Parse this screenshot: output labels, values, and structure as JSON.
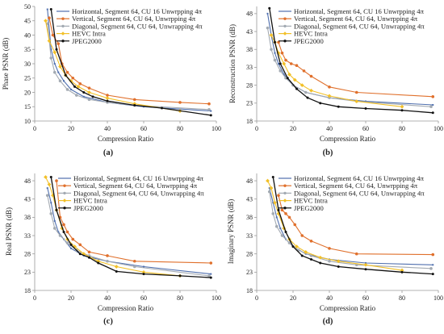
{
  "legend": [
    {
      "label": "Horizontal, Segment 64, CU 16 Unwrpping 4π",
      "color": "#4f6fae",
      "marker": "none"
    },
    {
      "label": "Vertical, Segment 64, CU 64, Unwrpping 4π",
      "color": "#e0702c",
      "marker": "circle"
    },
    {
      "label": "Diagonal, Segment 64, CU 64, Unwrapping 4π",
      "color": "#a3aab2",
      "marker": "circle"
    },
    {
      "label": "HEVC Intra",
      "color": "#f2c028",
      "marker": "diamond"
    },
    {
      "label": "JPEG2000",
      "color": "#111111",
      "marker": "circle"
    }
  ],
  "chart_data": [
    {
      "type": "line",
      "panel": "(a)",
      "xlabel": "Compression Ratio",
      "ylabel": "Phase PSNR (dB)",
      "xlim": [
        0,
        100
      ],
      "ylim": [
        10,
        50
      ],
      "xticks": [
        0,
        20,
        40,
        60,
        80,
        100
      ],
      "yticks": [
        10,
        15,
        20,
        25,
        30,
        35,
        40,
        45,
        50
      ],
      "series": [
        {
          "name": "Horizontal, Segment 64, CU 16 Unwrpping 4π",
          "x": [
            7,
            9,
            11,
            13,
            16,
            20,
            27,
            40,
            60,
            97
          ],
          "y": [
            49,
            35,
            30,
            27,
            24,
            21,
            18.5,
            16.5,
            15,
            13.5
          ]
        },
        {
          "name": "Vertical, Segment 64, CU 64, Unwrpping 4π",
          "x": [
            8,
            10,
            13,
            15,
            18,
            21,
            25,
            30,
            40,
            55,
            80,
            96
          ],
          "y": [
            46,
            40,
            37,
            30,
            27,
            25,
            23,
            21.5,
            19,
            17.5,
            16.5,
            16
          ]
        },
        {
          "name": "Diagonal, Segment 64, CU 64, Unwrapping 4π",
          "x": [
            7,
            9,
            11,
            14,
            18,
            23,
            30,
            40,
            55,
            96
          ],
          "y": [
            44,
            32,
            27,
            24,
            21,
            19,
            17.5,
            16.5,
            15.5,
            14
          ]
        },
        {
          "name": "HEVC Intra",
          "x": [
            6,
            8,
            11,
            14,
            17,
            20,
            24,
            30,
            40,
            55,
            80
          ],
          "y": [
            45,
            38,
            34,
            29,
            26,
            24,
            22,
            20,
            18,
            16,
            13.5
          ]
        },
        {
          "name": "JPEG2000",
          "x": [
            9,
            12,
            17,
            22,
            27,
            32,
            40,
            55,
            70,
            97
          ],
          "y": [
            49,
            35,
            26,
            22,
            20,
            18.5,
            17,
            15.5,
            14.5,
            12
          ]
        }
      ]
    },
    {
      "type": "line",
      "panel": "(b)",
      "xlabel": "Compression Ratio",
      "ylabel": "Reconstruction PSNR (dB)",
      "xlim": [
        0,
        100
      ],
      "ylim": [
        18,
        50
      ],
      "xticks": [
        0,
        20,
        40,
        60,
        80,
        100
      ],
      "yticks": [
        18,
        23,
        28,
        33,
        38,
        43,
        48
      ],
      "series": [
        {
          "name": "Horizontal, Segment 64, CU 16 Unwrpping 4π",
          "x": [
            6,
            8,
            10,
            12,
            15,
            20,
            27,
            40,
            60,
            97
          ],
          "y": [
            48,
            42,
            37,
            34,
            31,
            28,
            26,
            24.5,
            23.5,
            22.5
          ]
        },
        {
          "name": "Vertical, Segment 64, CU 64, Unwrpping 4π",
          "x": [
            12,
            14,
            16,
            19,
            22,
            26,
            30,
            40,
            55,
            97
          ],
          "y": [
            40,
            37,
            35,
            34,
            33.5,
            32,
            30.5,
            27.5,
            26,
            24.8
          ]
        },
        {
          "name": "Diagonal, Segment 64, CU 64, Unwrapping 4π",
          "x": [
            6,
            8,
            10,
            13,
            16,
            20,
            27,
            40,
            55,
            96
          ],
          "y": [
            44,
            38,
            35,
            32,
            30,
            28,
            26,
            24.5,
            23.5,
            22
          ]
        },
        {
          "name": "HEVC Intra",
          "x": [
            8,
            10,
            12,
            15,
            18,
            21,
            25,
            30,
            40,
            55,
            80
          ],
          "y": [
            42,
            40,
            37,
            34,
            31,
            29.5,
            28,
            26.5,
            25,
            23.5,
            22
          ]
        },
        {
          "name": "JPEG2000",
          "x": [
            7,
            10,
            13,
            17,
            22,
            28,
            35,
            45,
            60,
            80,
            97
          ],
          "y": [
            49.5,
            40,
            34,
            30,
            27,
            24.5,
            23,
            22,
            21.5,
            21,
            20.3
          ]
        }
      ]
    },
    {
      "type": "line",
      "panel": "(c)",
      "xlabel": "Compression Ratio",
      "ylabel": "Real PSNR (dB)",
      "xlim": [
        0,
        100
      ],
      "ylim": [
        18,
        50
      ],
      "xticks": [
        0,
        20,
        40,
        60,
        80,
        100
      ],
      "yticks": [
        18,
        23,
        28,
        33,
        38,
        43,
        48
      ],
      "series": [
        {
          "name": "Horizontal, Segment 64, CU 16 Unwrpping 4π",
          "x": [
            7,
            9,
            11,
            13,
            16,
            20,
            27,
            40,
            60,
            97
          ],
          "y": [
            46,
            42,
            37,
            34,
            32,
            29.5,
            27.5,
            26,
            24.5,
            22.5
          ]
        },
        {
          "name": "Vertical, Segment 64, CU 64, Unwrpping 4π",
          "x": [
            12,
            14,
            16,
            18,
            21,
            25,
            30,
            40,
            55,
            97
          ],
          "y": [
            48,
            38,
            36,
            34,
            32,
            30.5,
            28.5,
            27.5,
            26,
            25.5
          ]
        },
        {
          "name": "Diagonal, Segment 64, CU 64, Unwrapping 4π",
          "x": [
            7,
            9,
            11,
            14,
            18,
            23,
            30,
            40,
            55,
            96
          ],
          "y": [
            44,
            39,
            35,
            33,
            31,
            29,
            27.5,
            26,
            24.5,
            22
          ]
        },
        {
          "name": "HEVC Intra",
          "x": [
            6,
            8,
            10,
            12,
            15,
            18,
            22,
            27,
            35,
            45,
            60,
            80
          ],
          "y": [
            49,
            47,
            44,
            40,
            35,
            32,
            30,
            28,
            26,
            24.5,
            23,
            22
          ]
        },
        {
          "name": "JPEG2000",
          "x": [
            9,
            12,
            16,
            20,
            25,
            30,
            35,
            45,
            60,
            80,
            97
          ],
          "y": [
            49,
            40,
            34,
            30.5,
            28,
            27,
            25.5,
            23.2,
            22.5,
            22,
            21.5
          ]
        }
      ]
    },
    {
      "type": "line",
      "panel": "(d)",
      "xlabel": "Compression Ratio",
      "ylabel": "Imaginary PSNR (dB)",
      "xlim": [
        0,
        100
      ],
      "ylim": [
        18,
        50
      ],
      "xticks": [
        0,
        20,
        40,
        60,
        80,
        100
      ],
      "yticks": [
        18,
        23,
        28,
        33,
        38,
        43,
        48
      ],
      "series": [
        {
          "name": "Horizontal, Segment 64, CU 16 Unwrpping 4π",
          "x": [
            7,
            9,
            11,
            13,
            16,
            20,
            27,
            40,
            60,
            97
          ],
          "y": [
            46,
            42,
            38,
            35,
            32,
            30,
            28,
            26.5,
            25.5,
            25
          ]
        },
        {
          "name": "Vertical, Segment 64, CU 64, Unwrpping 4π",
          "x": [
            12,
            14,
            16,
            18,
            21,
            25,
            30,
            40,
            55,
            97
          ],
          "y": [
            44,
            40,
            39,
            38,
            36,
            33,
            31.5,
            29.5,
            28,
            27.8
          ]
        },
        {
          "name": "Diagonal, Segment 64, CU 64, Unwrapping 4π",
          "x": [
            7,
            9,
            11,
            14,
            18,
            23,
            30,
            40,
            55,
            96
          ],
          "y": [
            45,
            39,
            35.5,
            33,
            31,
            29,
            27.5,
            26,
            25,
            24
          ]
        },
        {
          "name": "HEVC Intra",
          "x": [
            6,
            8,
            10,
            12,
            15,
            18,
            22,
            27,
            35,
            45,
            60,
            80
          ],
          "y": [
            48,
            46,
            42,
            39,
            35,
            32,
            30,
            28.5,
            27,
            26,
            25,
            23.5
          ]
        },
        {
          "name": "JPEG2000",
          "x": [
            9,
            12,
            16,
            20,
            25,
            30,
            35,
            45,
            60,
            80,
            97
          ],
          "y": [
            49,
            40,
            34,
            30,
            27.5,
            26.5,
            25.5,
            24.5,
            23.8,
            23,
            22.5
          ]
        }
      ]
    }
  ]
}
